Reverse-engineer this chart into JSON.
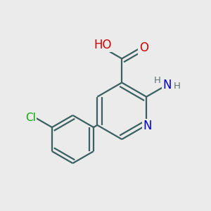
{
  "bg_color": "#ebebeb",
  "bond_color": "#3a6060",
  "bond_width": 1.6,
  "dbo": 0.018,
  "atom_colors": {
    "O": "#cc0000",
    "N": "#0000cc",
    "Cl": "#00aa00",
    "H": "#607070",
    "C": "#3a6060"
  },
  "font_size": 11,
  "small_font_size": 9.5
}
